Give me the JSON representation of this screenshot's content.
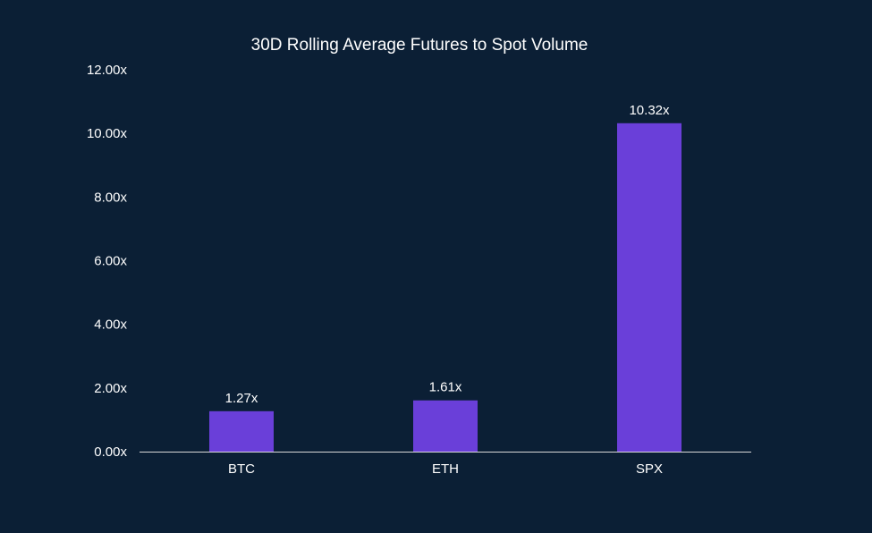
{
  "colors": {
    "background": "#0b1f35",
    "bar": "#6a3fd9",
    "text": "#ffffff",
    "axis": "#d9d9d9"
  },
  "chart_data": {
    "type": "bar",
    "title": "30D Rolling Average Futures to Spot Volume",
    "xlabel": "",
    "ylabel": "",
    "categories": [
      "BTC",
      "ETH",
      "SPX"
    ],
    "values": [
      1.27,
      1.61,
      10.32
    ],
    "data_labels": [
      "1.27x",
      "1.61x",
      "10.32x"
    ],
    "ylim": [
      0,
      12
    ],
    "yticks": [
      0,
      2,
      4,
      6,
      8,
      10,
      12
    ],
    "ytick_labels": [
      "0.00x",
      "2.00x",
      "4.00x",
      "6.00x",
      "8.00x",
      "10.00x",
      "12.00x"
    ],
    "grid": false,
    "legend": "none"
  }
}
